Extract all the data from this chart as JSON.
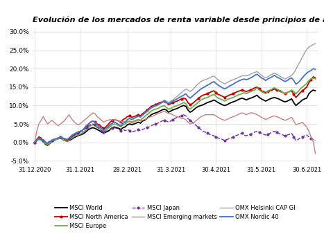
{
  "title": "Evolución de los mercados de renta variable desde principios de año",
  "xlabels": [
    "31.12.2020",
    "31.1.2021",
    "28.2.2021",
    "31.3.2021",
    "30.4.2021",
    "31.5.2021",
    "30.6.2021"
  ],
  "xtick_positions": [
    0,
    21,
    43,
    63,
    84,
    105,
    126
  ],
  "ylim": [
    -0.058,
    0.31
  ],
  "yticks": [
    -0.05,
    0.0,
    0.05,
    0.1,
    0.15,
    0.2,
    0.25,
    0.3
  ],
  "n_points": 131,
  "legend_order": [
    "MSCI World",
    "MSCI North America",
    "MSCI Europe",
    "MSCI Japan",
    "MSCI Emerging markets",
    "OMX Helsinki CAP GI",
    "OMX Nordic 40"
  ],
  "series": {
    "MSCI World": {
      "color": "#000000",
      "linestyle": "-",
      "linewidth": 1.3,
      "marker": null,
      "values": [
        0.0,
        0.005,
        0.01,
        0.008,
        0.003,
        -0.005,
        -0.008,
        -0.003,
        0.002,
        0.005,
        0.008,
        0.01,
        0.012,
        0.008,
        0.005,
        0.003,
        0.005,
        0.008,
        0.012,
        0.015,
        0.018,
        0.02,
        0.022,
        0.025,
        0.03,
        0.035,
        0.038,
        0.04,
        0.038,
        0.035,
        0.032,
        0.028,
        0.025,
        0.028,
        0.03,
        0.035,
        0.04,
        0.042,
        0.04,
        0.038,
        0.035,
        0.04,
        0.042,
        0.048,
        0.05,
        0.048,
        0.05,
        0.052,
        0.055,
        0.052,
        0.058,
        0.06,
        0.065,
        0.07,
        0.075,
        0.078,
        0.08,
        0.082,
        0.085,
        0.088,
        0.09,
        0.088,
        0.082,
        0.085,
        0.088,
        0.09,
        0.092,
        0.095,
        0.098,
        0.1,
        0.098,
        0.088,
        0.082,
        0.085,
        0.09,
        0.095,
        0.098,
        0.1,
        0.102,
        0.105,
        0.108,
        0.11,
        0.112,
        0.115,
        0.112,
        0.108,
        0.105,
        0.102,
        0.1,
        0.102,
        0.105,
        0.108,
        0.11,
        0.112,
        0.115,
        0.118,
        0.12,
        0.118,
        0.115,
        0.118,
        0.12,
        0.122,
        0.125,
        0.128,
        0.122,
        0.118,
        0.115,
        0.112,
        0.115,
        0.118,
        0.12,
        0.122,
        0.12,
        0.118,
        0.115,
        0.112,
        0.11,
        0.112,
        0.115,
        0.118,
        0.108,
        0.1,
        0.105,
        0.11,
        0.115,
        0.118,
        0.12,
        0.132,
        0.138,
        0.142,
        0.14
      ]
    },
    "MSCI North America": {
      "color": "#c00000",
      "linestyle": "-",
      "linewidth": 1.3,
      "marker": "o",
      "markersize": 2,
      "markevery": 4,
      "values": [
        0.0,
        0.008,
        0.015,
        0.012,
        0.005,
        -0.002,
        -0.005,
        0.0,
        0.005,
        0.008,
        0.01,
        0.012,
        0.015,
        0.01,
        0.008,
        0.005,
        0.008,
        0.012,
        0.018,
        0.022,
        0.025,
        0.028,
        0.032,
        0.038,
        0.045,
        0.05,
        0.055,
        0.058,
        0.055,
        0.05,
        0.048,
        0.042,
        0.038,
        0.042,
        0.048,
        0.055,
        0.06,
        0.062,
        0.06,
        0.058,
        0.055,
        0.062,
        0.065,
        0.07,
        0.072,
        0.068,
        0.07,
        0.072,
        0.075,
        0.072,
        0.078,
        0.082,
        0.088,
        0.092,
        0.098,
        0.1,
        0.102,
        0.105,
        0.108,
        0.11,
        0.112,
        0.108,
        0.102,
        0.105,
        0.108,
        0.11,
        0.112,
        0.115,
        0.118,
        0.12,
        0.118,
        0.108,
        0.102,
        0.105,
        0.11,
        0.115,
        0.12,
        0.125,
        0.128,
        0.13,
        0.132,
        0.135,
        0.138,
        0.14,
        0.135,
        0.13,
        0.128,
        0.125,
        0.122,
        0.125,
        0.128,
        0.13,
        0.132,
        0.135,
        0.138,
        0.14,
        0.142,
        0.14,
        0.138,
        0.14,
        0.142,
        0.145,
        0.148,
        0.15,
        0.145,
        0.14,
        0.138,
        0.135,
        0.138,
        0.14,
        0.142,
        0.145,
        0.142,
        0.14,
        0.138,
        0.135,
        0.132,
        0.135,
        0.138,
        0.14,
        0.13,
        0.122,
        0.128,
        0.135,
        0.14,
        0.145,
        0.15,
        0.162,
        0.17,
        0.178,
        0.175
      ]
    },
    "MSCI Europe": {
      "color": "#70ad47",
      "linestyle": "-",
      "linewidth": 1.3,
      "marker": null,
      "values": [
        0.0,
        0.005,
        0.008,
        0.006,
        0.002,
        -0.003,
        -0.006,
        -0.002,
        0.002,
        0.005,
        0.008,
        0.01,
        0.012,
        0.008,
        0.005,
        0.003,
        0.005,
        0.01,
        0.015,
        0.018,
        0.02,
        0.022,
        0.025,
        0.03,
        0.035,
        0.04,
        0.045,
        0.048,
        0.045,
        0.04,
        0.038,
        0.032,
        0.028,
        0.032,
        0.038,
        0.042,
        0.048,
        0.05,
        0.048,
        0.045,
        0.042,
        0.048,
        0.05,
        0.055,
        0.058,
        0.055,
        0.058,
        0.06,
        0.062,
        0.06,
        0.065,
        0.07,
        0.075,
        0.08,
        0.085,
        0.088,
        0.09,
        0.092,
        0.095,
        0.098,
        0.1,
        0.095,
        0.09,
        0.092,
        0.095,
        0.098,
        0.1,
        0.102,
        0.105,
        0.108,
        0.105,
        0.095,
        0.09,
        0.095,
        0.1,
        0.105,
        0.11,
        0.115,
        0.118,
        0.12,
        0.122,
        0.125,
        0.128,
        0.13,
        0.125,
        0.12,
        0.118,
        0.115,
        0.112,
        0.115,
        0.118,
        0.12,
        0.122,
        0.125,
        0.128,
        0.13,
        0.132,
        0.135,
        0.132,
        0.135,
        0.138,
        0.14,
        0.142,
        0.148,
        0.142,
        0.138,
        0.135,
        0.132,
        0.138,
        0.142,
        0.145,
        0.148,
        0.145,
        0.142,
        0.14,
        0.135,
        0.132,
        0.135,
        0.138,
        0.142,
        0.138,
        0.132,
        0.138,
        0.145,
        0.15,
        0.155,
        0.16,
        0.168,
        0.172,
        0.175,
        0.172
      ]
    },
    "MSCI Japan": {
      "color": "#7030a0",
      "linestyle": "--",
      "linewidth": 1.0,
      "marker": "o",
      "markersize": 2,
      "markevery": 4,
      "values": [
        0.0,
        0.005,
        0.01,
        0.008,
        0.005,
        0.002,
        0.0,
        0.003,
        0.005,
        0.008,
        0.01,
        0.012,
        0.015,
        0.012,
        0.01,
        0.008,
        0.01,
        0.015,
        0.02,
        0.022,
        0.025,
        0.028,
        0.03,
        0.035,
        0.04,
        0.045,
        0.048,
        0.05,
        0.048,
        0.042,
        0.038,
        0.032,
        0.028,
        0.03,
        0.032,
        0.035,
        0.038,
        0.04,
        0.038,
        0.035,
        0.032,
        0.035,
        0.032,
        0.035,
        0.032,
        0.028,
        0.03,
        0.032,
        0.035,
        0.032,
        0.035,
        0.038,
        0.04,
        0.042,
        0.045,
        0.048,
        0.05,
        0.052,
        0.055,
        0.058,
        0.06,
        0.058,
        0.055,
        0.058,
        0.062,
        0.065,
        0.068,
        0.07,
        0.072,
        0.075,
        0.072,
        0.065,
        0.06,
        0.055,
        0.05,
        0.045,
        0.04,
        0.035,
        0.03,
        0.028,
        0.025,
        0.022,
        0.02,
        0.018,
        0.015,
        0.012,
        0.01,
        0.008,
        0.005,
        0.008,
        0.01,
        0.012,
        0.015,
        0.018,
        0.02,
        0.022,
        0.025,
        0.02,
        0.018,
        0.02,
        0.022,
        0.025,
        0.028,
        0.03,
        0.028,
        0.025,
        0.022,
        0.02,
        0.022,
        0.025,
        0.028,
        0.03,
        0.028,
        0.025,
        0.022,
        0.02,
        0.018,
        0.02,
        0.022,
        0.025,
        0.015,
        0.005,
        0.008,
        0.012,
        0.015,
        0.018,
        0.02,
        0.015,
        0.01,
        0.008,
        0.005
      ]
    },
    "MSCI Emerging markets": {
      "color": "#cd7f7f",
      "linestyle": "-",
      "linewidth": 1.0,
      "marker": null,
      "values": [
        0.0,
        0.03,
        0.05,
        0.06,
        0.07,
        0.06,
        0.05,
        0.055,
        0.06,
        0.055,
        0.05,
        0.045,
        0.05,
        0.055,
        0.06,
        0.068,
        0.075,
        0.065,
        0.058,
        0.052,
        0.048,
        0.05,
        0.055,
        0.06,
        0.065,
        0.07,
        0.075,
        0.08,
        0.078,
        0.07,
        0.065,
        0.06,
        0.055,
        0.058,
        0.06,
        0.062,
        0.06,
        0.062,
        0.06,
        0.058,
        0.055,
        0.058,
        0.055,
        0.058,
        0.055,
        0.052,
        0.055,
        0.058,
        0.06,
        0.058,
        0.06,
        0.062,
        0.065,
        0.068,
        0.07,
        0.072,
        0.075,
        0.078,
        0.08,
        0.082,
        0.085,
        0.082,
        0.078,
        0.078,
        0.075,
        0.072,
        0.07,
        0.068,
        0.065,
        0.065,
        0.062,
        0.055,
        0.05,
        0.052,
        0.055,
        0.06,
        0.065,
        0.07,
        0.072,
        0.075,
        0.075,
        0.075,
        0.075,
        0.075,
        0.072,
        0.068,
        0.065,
        0.062,
        0.06,
        0.062,
        0.065,
        0.068,
        0.07,
        0.072,
        0.075,
        0.078,
        0.08,
        0.078,
        0.075,
        0.078,
        0.08,
        0.08,
        0.078,
        0.075,
        0.072,
        0.068,
        0.065,
        0.062,
        0.065,
        0.068,
        0.07,
        0.072,
        0.07,
        0.068,
        0.065,
        0.062,
        0.06,
        0.062,
        0.065,
        0.068,
        0.058,
        0.048,
        0.05,
        0.052,
        0.055,
        0.048,
        0.042,
        0.03,
        0.015,
        0.002,
        -0.03
      ]
    },
    "OMX Helsinki CAP GI": {
      "color": "#a0a0a0",
      "linestyle": "-",
      "linewidth": 1.0,
      "marker": null,
      "values": [
        0.0,
        0.008,
        0.012,
        0.01,
        0.005,
        0.0,
        -0.002,
        0.002,
        0.005,
        0.008,
        0.01,
        0.012,
        0.015,
        0.012,
        0.01,
        0.008,
        0.012,
        0.018,
        0.022,
        0.025,
        0.028,
        0.03,
        0.032,
        0.038,
        0.045,
        0.05,
        0.055,
        0.058,
        0.055,
        0.048,
        0.042,
        0.038,
        0.032,
        0.038,
        0.042,
        0.048,
        0.052,
        0.055,
        0.052,
        0.048,
        0.045,
        0.052,
        0.055,
        0.062,
        0.065,
        0.062,
        0.065,
        0.068,
        0.07,
        0.068,
        0.072,
        0.078,
        0.082,
        0.088,
        0.092,
        0.095,
        0.098,
        0.1,
        0.105,
        0.11,
        0.115,
        0.112,
        0.108,
        0.112,
        0.115,
        0.12,
        0.125,
        0.13,
        0.135,
        0.14,
        0.145,
        0.142,
        0.138,
        0.142,
        0.148,
        0.155,
        0.16,
        0.165,
        0.168,
        0.17,
        0.172,
        0.175,
        0.178,
        0.18,
        0.175,
        0.17,
        0.165,
        0.162,
        0.158,
        0.162,
        0.165,
        0.168,
        0.17,
        0.172,
        0.175,
        0.178,
        0.18,
        0.182,
        0.18,
        0.182,
        0.185,
        0.188,
        0.19,
        0.192,
        0.188,
        0.182,
        0.178,
        0.175,
        0.178,
        0.182,
        0.185,
        0.188,
        0.185,
        0.182,
        0.178,
        0.175,
        0.172,
        0.175,
        0.178,
        0.182,
        0.188,
        0.198,
        0.21,
        0.22,
        0.232,
        0.242,
        0.252,
        0.258,
        0.262,
        0.265,
        0.268
      ]
    },
    "OMX Nordic 40": {
      "color": "#4472c4",
      "linestyle": "-",
      "linewidth": 1.3,
      "marker": null,
      "values": [
        0.0,
        0.008,
        0.012,
        0.01,
        0.005,
        0.0,
        -0.002,
        0.002,
        0.005,
        0.008,
        0.01,
        0.012,
        0.015,
        0.012,
        0.01,
        0.008,
        0.012,
        0.018,
        0.022,
        0.025,
        0.028,
        0.03,
        0.032,
        0.038,
        0.045,
        0.05,
        0.055,
        0.058,
        0.055,
        0.048,
        0.042,
        0.038,
        0.032,
        0.038,
        0.042,
        0.048,
        0.052,
        0.055,
        0.052,
        0.048,
        0.045,
        0.052,
        0.055,
        0.062,
        0.065,
        0.062,
        0.065,
        0.068,
        0.072,
        0.07,
        0.075,
        0.08,
        0.085,
        0.09,
        0.095,
        0.098,
        0.1,
        0.102,
        0.105,
        0.108,
        0.112,
        0.108,
        0.105,
        0.108,
        0.112,
        0.115,
        0.118,
        0.122,
        0.125,
        0.128,
        0.132,
        0.125,
        0.12,
        0.125,
        0.13,
        0.135,
        0.14,
        0.145,
        0.148,
        0.152,
        0.155,
        0.158,
        0.162,
        0.165,
        0.16,
        0.155,
        0.152,
        0.148,
        0.145,
        0.148,
        0.152,
        0.155,
        0.158,
        0.162,
        0.165,
        0.168,
        0.17,
        0.172,
        0.17,
        0.172,
        0.175,
        0.178,
        0.182,
        0.185,
        0.18,
        0.175,
        0.172,
        0.168,
        0.172,
        0.175,
        0.178,
        0.182,
        0.178,
        0.175,
        0.172,
        0.168,
        0.165,
        0.168,
        0.172,
        0.175,
        0.168,
        0.158,
        0.162,
        0.168,
        0.175,
        0.182,
        0.188,
        0.192,
        0.195,
        0.2,
        0.198
      ]
    }
  }
}
